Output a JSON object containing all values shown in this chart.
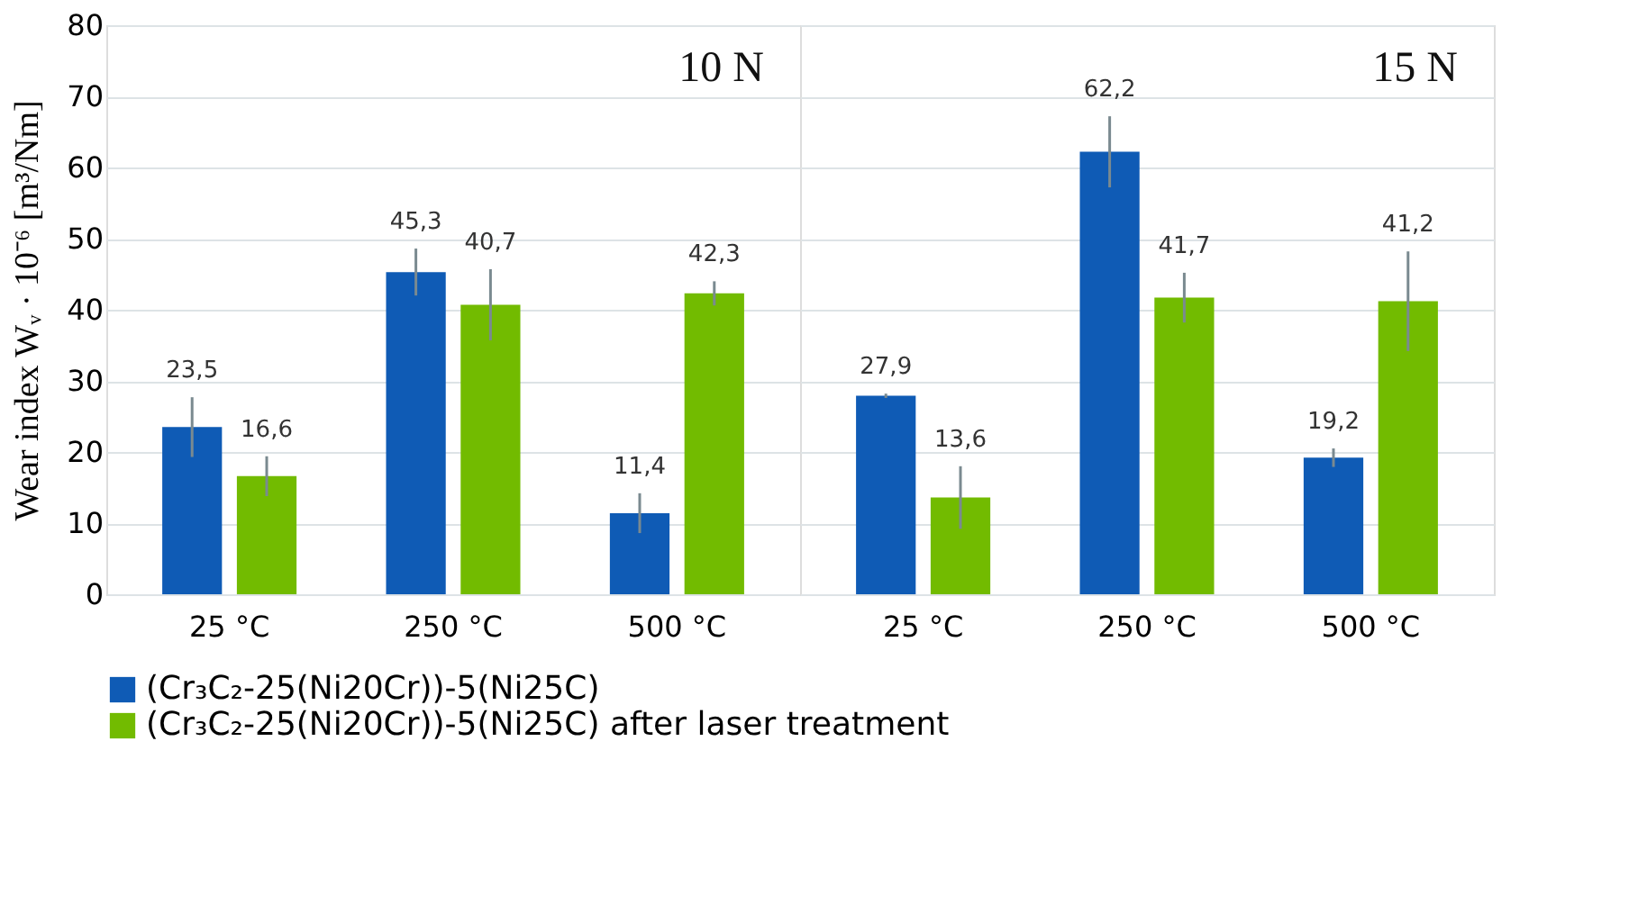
{
  "chart_data": [
    {
      "type": "bar",
      "categories": [
        "25 °C",
        "250 °C",
        "500 °C"
      ],
      "ylabel": "Wear index Wᵥ · 10⁻⁶ [m³/Nm]",
      "ylim": [
        0,
        80
      ],
      "yticks": [
        0,
        10,
        20,
        30,
        40,
        50,
        60,
        70,
        80
      ],
      "grid": "y",
      "legend": "bottom",
      "annotations": [
        "10 N"
      ],
      "series": [
        {
          "name": "(Cr₃C₂-25(Ni20Cr))-5(Ni25C)",
          "color": "#0f5bb5",
          "values": [
            23.5,
            45.3,
            11.4
          ],
          "errors": [
            4.2,
            3.3,
            2.8
          ],
          "value_labels": [
            "23,5",
            "45,3",
            "11,4"
          ]
        },
        {
          "name": "(Cr₃C₂-25(Ni20Cr))-5(Ni25C) after laser treatment",
          "color": "#72bb00",
          "values": [
            16.6,
            40.7,
            42.3
          ],
          "errors": [
            2.8,
            5,
            1.7
          ],
          "value_labels": [
            "16,6",
            "40,7",
            "42,3"
          ]
        }
      ]
    },
    {
      "type": "bar",
      "categories": [
        "25 °C",
        "250 °C",
        "500 °C"
      ],
      "ylim": [
        0,
        80
      ],
      "yticks": [
        0,
        10,
        20,
        30,
        40,
        50,
        60,
        70,
        80
      ],
      "grid": "y",
      "tick_labels": "x",
      "annotations": [
        "15 N"
      ],
      "series": [
        {
          "color": "#0f5bb5",
          "values": [
            27.9,
            62.2,
            19.2
          ],
          "errors": [
            0.3,
            5,
            1.3
          ],
          "value_labels": [
            "27,9",
            "62,2",
            "19,2"
          ]
        },
        {
          "color": "#72bb00",
          "values": [
            13.6,
            41.7,
            41.2
          ],
          "errors": [
            4.4,
            3.5,
            7
          ],
          "value_labels": [
            "13,6",
            "41,7",
            "41,2"
          ]
        }
      ]
    }
  ]
}
